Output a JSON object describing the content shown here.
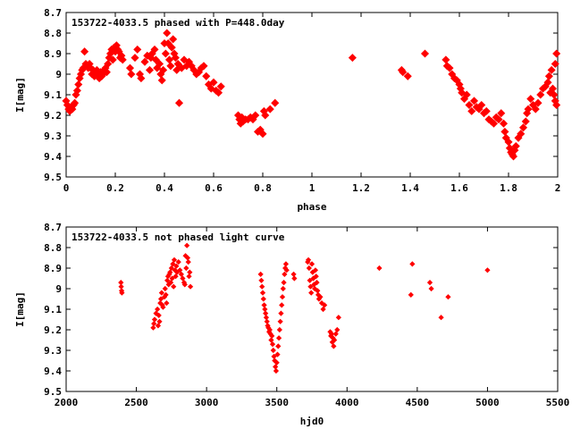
{
  "chart_data": [
    {
      "type": "scatter",
      "title": "153722-4033.5 phased with P=448.0day",
      "xlabel": "phase",
      "ylabel": "I[mag]",
      "xlim": [
        0,
        2
      ],
      "ylim": [
        8.7,
        9.5
      ],
      "y_inverted": true,
      "grid": false,
      "color": "#ff0000",
      "x_ticks": [
        "0",
        "0.2",
        "0.4",
        "0.6",
        "0.8",
        "1",
        "1.2",
        "1.4",
        "1.6",
        "1.8",
        "2"
      ],
      "y_ticks": [
        "8.7",
        "8.8",
        "8.9",
        "9",
        "9.1",
        "9.2",
        "9.3",
        "9.4",
        "9.5"
      ],
      "points": [
        [
          0.0,
          9.13
        ],
        [
          0.005,
          9.15
        ],
        [
          0.01,
          9.17
        ],
        [
          0.015,
          9.18
        ],
        [
          0.02,
          9.16
        ],
        [
          0.025,
          9.17
        ],
        [
          0.03,
          9.15
        ],
        [
          0.035,
          9.14
        ],
        [
          0.04,
          9.1
        ],
        [
          0.045,
          9.08
        ],
        [
          0.05,
          9.05
        ],
        [
          0.055,
          9.02
        ],
        [
          0.06,
          9.0
        ],
        [
          0.065,
          8.98
        ],
        [
          0.07,
          8.97
        ],
        [
          0.075,
          8.89
        ],
        [
          0.08,
          8.95
        ],
        [
          0.085,
          8.96
        ],
        [
          0.09,
          8.97
        ],
        [
          0.095,
          8.95
        ],
        [
          0.1,
          8.97
        ],
        [
          0.105,
          9.0
        ],
        [
          0.11,
          8.98
        ],
        [
          0.115,
          9.01
        ],
        [
          0.12,
          8.99
        ],
        [
          0.125,
          8.98
        ],
        [
          0.13,
          9.0
        ],
        [
          0.135,
          9.02
        ],
        [
          0.14,
          8.99
        ],
        [
          0.145,
          9.01
        ],
        [
          0.15,
          9.0
        ],
        [
          0.155,
          8.98
        ],
        [
          0.16,
          8.97
        ],
        [
          0.165,
          8.99
        ],
        [
          0.17,
          8.95
        ],
        [
          0.175,
          8.92
        ],
        [
          0.18,
          8.9
        ],
        [
          0.185,
          8.88
        ],
        [
          0.19,
          8.93
        ],
        [
          0.195,
          8.87
        ],
        [
          0.2,
          8.89
        ],
        [
          0.205,
          8.86
        ],
        [
          0.21,
          8.88
        ],
        [
          0.215,
          8.89
        ],
        [
          0.22,
          8.92
        ],
        [
          0.225,
          8.91
        ],
        [
          0.23,
          8.93
        ],
        [
          0.26,
          8.97
        ],
        [
          0.265,
          9.0
        ],
        [
          0.28,
          8.92
        ],
        [
          0.29,
          8.88
        ],
        [
          0.3,
          9.0
        ],
        [
          0.305,
          9.02
        ],
        [
          0.32,
          8.94
        ],
        [
          0.33,
          8.91
        ],
        [
          0.34,
          8.98
        ],
        [
          0.345,
          8.92
        ],
        [
          0.35,
          8.9
        ],
        [
          0.36,
          8.88
        ],
        [
          0.365,
          8.93
        ],
        [
          0.37,
          8.97
        ],
        [
          0.38,
          8.95
        ],
        [
          0.385,
          9.0
        ],
        [
          0.39,
          9.03
        ],
        [
          0.395,
          8.98
        ],
        [
          0.4,
          8.85
        ],
        [
          0.405,
          8.9
        ],
        [
          0.41,
          8.8
        ],
        [
          0.415,
          8.85
        ],
        [
          0.42,
          8.93
        ],
        [
          0.425,
          8.96
        ],
        [
          0.43,
          8.87
        ],
        [
          0.435,
          8.83
        ],
        [
          0.44,
          8.9
        ],
        [
          0.445,
          8.92
        ],
        [
          0.45,
          8.98
        ],
        [
          0.455,
          8.95
        ],
        [
          0.46,
          9.14
        ],
        [
          0.47,
          8.97
        ],
        [
          0.48,
          8.93
        ],
        [
          0.49,
          8.96
        ],
        [
          0.5,
          8.94
        ],
        [
          0.51,
          8.96
        ],
        [
          0.52,
          8.98
        ],
        [
          0.53,
          9.0
        ],
        [
          0.54,
          8.99
        ],
        [
          0.55,
          8.97
        ],
        [
          0.56,
          8.96
        ],
        [
          0.57,
          9.01
        ],
        [
          0.58,
          9.05
        ],
        [
          0.59,
          9.07
        ],
        [
          0.6,
          9.04
        ],
        [
          0.61,
          9.08
        ],
        [
          0.62,
          9.09
        ],
        [
          0.63,
          9.06
        ],
        [
          0.7,
          9.2
        ],
        [
          0.705,
          9.22
        ],
        [
          0.71,
          9.24
        ],
        [
          0.715,
          9.21
        ],
        [
          0.72,
          9.23
        ],
        [
          0.73,
          9.22
        ],
        [
          0.74,
          9.22
        ],
        [
          0.75,
          9.21
        ],
        [
          0.76,
          9.22
        ],
        [
          0.77,
          9.2
        ],
        [
          0.78,
          9.28
        ],
        [
          0.79,
          9.27
        ],
        [
          0.8,
          9.29
        ],
        [
          0.805,
          9.18
        ],
        [
          0.81,
          9.2
        ],
        [
          0.83,
          9.17
        ],
        [
          0.85,
          9.14
        ],
        [
          1.165,
          8.92
        ],
        [
          1.365,
          8.98
        ],
        [
          1.37,
          8.99
        ],
        [
          1.39,
          9.01
        ],
        [
          1.46,
          8.9
        ],
        [
          1.545,
          8.93
        ],
        [
          1.55,
          8.96
        ],
        [
          1.56,
          8.97
        ],
        [
          1.57,
          9.0
        ],
        [
          1.58,
          9.02
        ],
        [
          1.59,
          9.03
        ],
        [
          1.6,
          9.05
        ],
        [
          1.605,
          9.07
        ],
        [
          1.61,
          9.09
        ],
        [
          1.62,
          9.12
        ],
        [
          1.63,
          9.1
        ],
        [
          1.64,
          9.15
        ],
        [
          1.65,
          9.18
        ],
        [
          1.66,
          9.13
        ],
        [
          1.67,
          9.16
        ],
        [
          1.68,
          9.17
        ],
        [
          1.69,
          9.15
        ],
        [
          1.7,
          9.19
        ],
        [
          1.71,
          9.18
        ],
        [
          1.72,
          9.22
        ],
        [
          1.73,
          9.23
        ],
        [
          1.74,
          9.24
        ],
        [
          1.75,
          9.21
        ],
        [
          1.76,
          9.22
        ],
        [
          1.77,
          9.19
        ],
        [
          1.78,
          9.24
        ],
        [
          1.785,
          9.28
        ],
        [
          1.79,
          9.31
        ],
        [
          1.8,
          9.33
        ],
        [
          1.805,
          9.36
        ],
        [
          1.81,
          9.38
        ],
        [
          1.815,
          9.39
        ],
        [
          1.82,
          9.4
        ],
        [
          1.825,
          9.37
        ],
        [
          1.83,
          9.35
        ],
        [
          1.84,
          9.31
        ],
        [
          1.85,
          9.29
        ],
        [
          1.86,
          9.26
        ],
        [
          1.87,
          9.23
        ],
        [
          1.875,
          9.19
        ],
        [
          1.88,
          9.17
        ],
        [
          1.89,
          9.12
        ],
        [
          1.9,
          9.15
        ],
        [
          1.91,
          9.17
        ],
        [
          1.92,
          9.14
        ],
        [
          1.93,
          9.1
        ],
        [
          1.94,
          9.07
        ],
        [
          1.95,
          9.06
        ],
        [
          1.96,
          9.04
        ],
        [
          1.965,
          9.01
        ],
        [
          1.97,
          9.09
        ],
        [
          1.975,
          8.98
        ],
        [
          1.98,
          9.07
        ],
        [
          1.985,
          9.1
        ],
        [
          1.99,
          9.13
        ],
        [
          1.995,
          9.15
        ],
        [
          1.99,
          8.95
        ],
        [
          1.995,
          8.9
        ]
      ]
    },
    {
      "type": "scatter",
      "title": "153722-4033.5 not phased light curve",
      "xlabel": "hjd0",
      "ylabel": "I[mag]",
      "xlim": [
        2000,
        5500
      ],
      "ylim": [
        8.7,
        9.5
      ],
      "y_inverted": true,
      "grid": false,
      "color": "#ff0000",
      "x_ticks": [
        "2000",
        "2500",
        "3000",
        "3500",
        "4000",
        "4500",
        "5000",
        "5500"
      ],
      "y_ticks": [
        "8.7",
        "8.8",
        "8.9",
        "9",
        "9.1",
        "9.2",
        "9.3",
        "9.4",
        "9.5"
      ],
      "points": [
        [
          2390,
          8.97
        ],
        [
          2392,
          8.99
        ],
        [
          2395,
          9.01
        ],
        [
          2397,
          9.02
        ],
        [
          2620,
          9.19
        ],
        [
          2625,
          9.17
        ],
        [
          2630,
          9.15
        ],
        [
          2640,
          9.12
        ],
        [
          2650,
          9.1
        ],
        [
          2655,
          9.18
        ],
        [
          2660,
          9.13
        ],
        [
          2665,
          9.16
        ],
        [
          2670,
          9.07
        ],
        [
          2675,
          9.05
        ],
        [
          2680,
          9.02
        ],
        [
          2685,
          9.08
        ],
        [
          2690,
          9.09
        ],
        [
          2700,
          9.04
        ],
        [
          2705,
          9.0
        ],
        [
          2710,
          9.03
        ],
        [
          2715,
          9.07
        ],
        [
          2720,
          8.96
        ],
        [
          2725,
          8.94
        ],
        [
          2730,
          8.98
        ],
        [
          2735,
          8.93
        ],
        [
          2740,
          8.92
        ],
        [
          2745,
          8.97
        ],
        [
          2750,
          8.9
        ],
        [
          2755,
          8.95
        ],
        [
          2760,
          8.88
        ],
        [
          2765,
          8.99
        ],
        [
          2770,
          8.86
        ],
        [
          2775,
          8.91
        ],
        [
          2780,
          8.94
        ],
        [
          2785,
          8.89
        ],
        [
          2790,
          8.92
        ],
        [
          2800,
          8.87
        ],
        [
          2810,
          8.91
        ],
        [
          2820,
          8.93
        ],
        [
          2830,
          8.95
        ],
        [
          2840,
          8.97
        ],
        [
          2845,
          8.98
        ],
        [
          2850,
          8.84
        ],
        [
          2855,
          8.9
        ],
        [
          2860,
          8.79
        ],
        [
          2865,
          8.85
        ],
        [
          2870,
          8.87
        ],
        [
          2875,
          8.94
        ],
        [
          2880,
          8.92
        ],
        [
          2885,
          8.99
        ],
        [
          3385,
          8.93
        ],
        [
          3390,
          8.96
        ],
        [
          3395,
          8.99
        ],
        [
          3400,
          9.02
        ],
        [
          3405,
          9.05
        ],
        [
          3410,
          9.08
        ],
        [
          3415,
          9.1
        ],
        [
          3420,
          9.12
        ],
        [
          3425,
          9.14
        ],
        [
          3430,
          9.16
        ],
        [
          3435,
          9.18
        ],
        [
          3440,
          9.19
        ],
        [
          3445,
          9.21
        ],
        [
          3450,
          9.2
        ],
        [
          3455,
          9.22
        ],
        [
          3460,
          9.25
        ],
        [
          3465,
          9.23
        ],
        [
          3470,
          9.27
        ],
        [
          3475,
          9.3
        ],
        [
          3480,
          9.33
        ],
        [
          3485,
          9.35
        ],
        [
          3490,
          9.38
        ],
        [
          3495,
          9.4
        ],
        [
          3500,
          9.36
        ],
        [
          3505,
          9.32
        ],
        [
          3510,
          9.28
        ],
        [
          3515,
          9.24
        ],
        [
          3520,
          9.2
        ],
        [
          3525,
          9.16
        ],
        [
          3530,
          9.12
        ],
        [
          3535,
          9.08
        ],
        [
          3540,
          9.04
        ],
        [
          3545,
          9.0
        ],
        [
          3550,
          8.97
        ],
        [
          3555,
          8.93
        ],
        [
          3560,
          8.9
        ],
        [
          3565,
          8.88
        ],
        [
          3570,
          8.91
        ],
        [
          3620,
          8.93
        ],
        [
          3625,
          8.95
        ],
        [
          3720,
          8.87
        ],
        [
          3725,
          8.86
        ],
        [
          3730,
          8.9
        ],
        [
          3735,
          8.96
        ],
        [
          3740,
          8.99
        ],
        [
          3745,
          9.02
        ],
        [
          3750,
          8.88
        ],
        [
          3755,
          8.92
        ],
        [
          3760,
          8.95
        ],
        [
          3765,
          8.98
        ],
        [
          3770,
          9.0
        ],
        [
          3775,
          8.91
        ],
        [
          3780,
          8.94
        ],
        [
          3785,
          8.97
        ],
        [
          3790,
          9.01
        ],
        [
          3795,
          9.03
        ],
        [
          3800,
          9.05
        ],
        [
          3810,
          9.04
        ],
        [
          3820,
          9.07
        ],
        [
          3830,
          9.1
        ],
        [
          3840,
          9.08
        ],
        [
          3880,
          9.21
        ],
        [
          3885,
          9.23
        ],
        [
          3890,
          9.22
        ],
        [
          3895,
          9.26
        ],
        [
          3900,
          9.24
        ],
        [
          3905,
          9.28
        ],
        [
          3910,
          9.25
        ],
        [
          3920,
          9.22
        ],
        [
          3930,
          9.2
        ],
        [
          3940,
          9.14
        ],
        [
          4230,
          8.9
        ],
        [
          4455,
          9.03
        ],
        [
          4465,
          8.88
        ],
        [
          4590,
          8.97
        ],
        [
          4600,
          9.0
        ],
        [
          4670,
          9.14
        ],
        [
          4720,
          9.04
        ],
        [
          5000,
          8.91
        ]
      ]
    }
  ]
}
